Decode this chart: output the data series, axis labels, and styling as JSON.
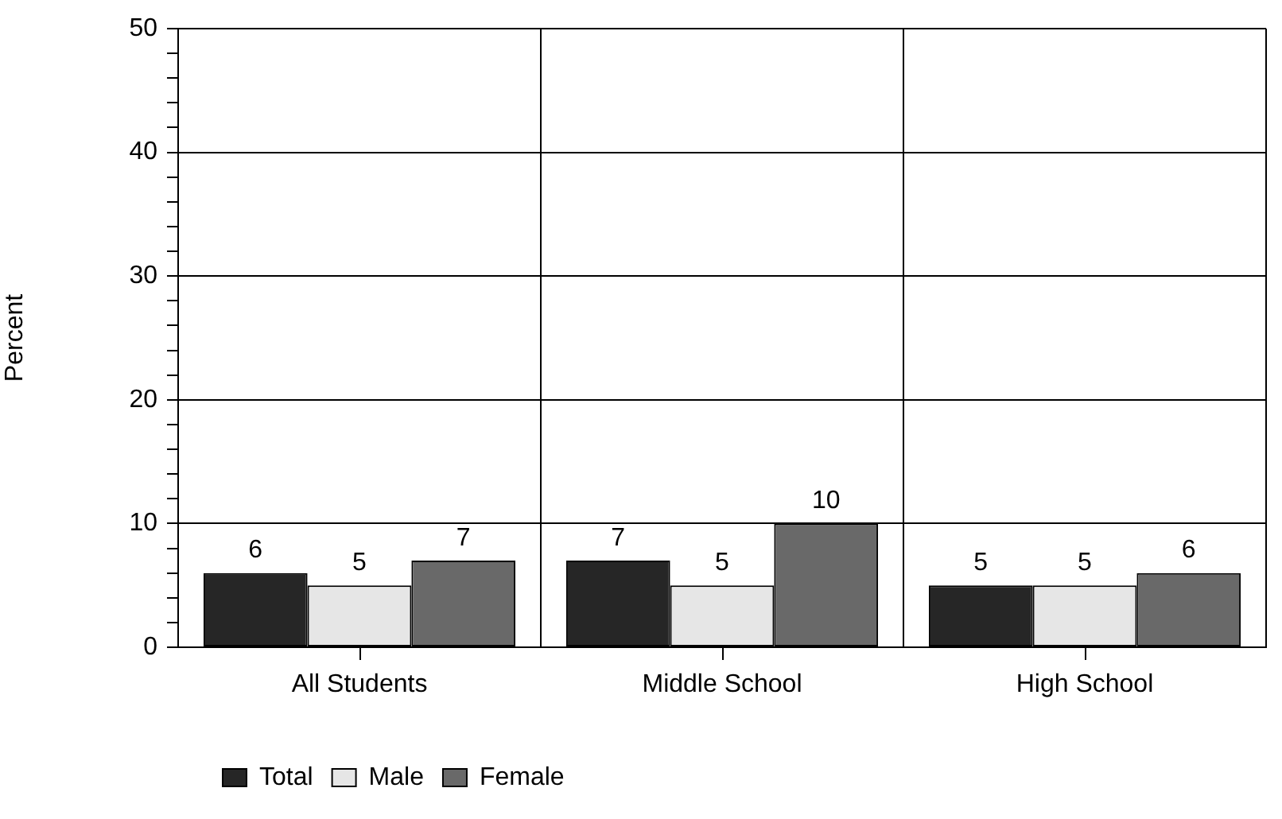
{
  "chart_data": {
    "type": "bar",
    "ylabel": "Percent",
    "categories": [
      "All Students",
      "Middle School",
      "High School"
    ],
    "series": [
      {
        "name": "Total",
        "color": "#262626",
        "values": [
          6,
          7,
          5
        ]
      },
      {
        "name": "Male",
        "color": "#e6e6e6",
        "values": [
          5,
          5,
          5
        ]
      },
      {
        "name": "Female",
        "color": "#696969",
        "values": [
          7,
          10,
          6
        ]
      }
    ],
    "ylim": [
      0,
      50
    ],
    "yticks": [
      0,
      {
        "value": 2,
        "label": null
      },
      {
        "value": 4,
        "label": null
      },
      {
        "value": 6,
        "label": null
      },
      {
        "value": 8,
        "label": null
      },
      10,
      {
        "value": 12,
        "label": null
      },
      {
        "value": 14,
        "label": null
      },
      {
        "value": 16,
        "label": null
      },
      {
        "value": 18,
        "label": null
      },
      20,
      {
        "value": 22,
        "label": null
      },
      {
        "value": 24,
        "label": null
      },
      {
        "value": 26,
        "label": null
      },
      {
        "value": 28,
        "label": null
      },
      30,
      {
        "value": 32,
        "label": null
      },
      {
        "value": 34,
        "label": null
      },
      {
        "value": 36,
        "label": null
      },
      {
        "value": 38,
        "label": null
      },
      40,
      {
        "value": 42,
        "label": null
      },
      {
        "value": 44,
        "label": null
      },
      {
        "value": 46,
        "label": null
      },
      {
        "value": 48,
        "label": null
      },
      50
    ],
    "grid": true,
    "legend": "bottom left",
    "data_labels": true
  }
}
